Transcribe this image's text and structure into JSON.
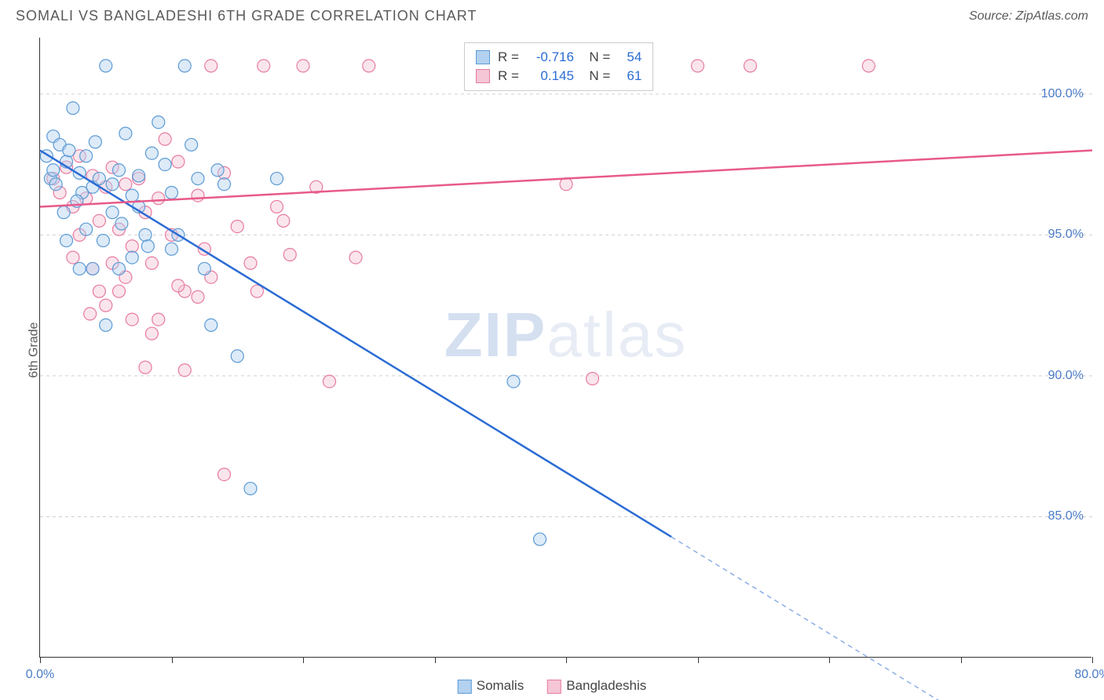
{
  "header": {
    "title": "SOMALI VS BANGLADESHI 6TH GRADE CORRELATION CHART",
    "source": "Source: ZipAtlas.com"
  },
  "ylabel": "6th Grade",
  "watermark_zip": "ZIP",
  "watermark_atlas": "atlas",
  "chart": {
    "type": "scatter",
    "background_color": "#ffffff",
    "grid_color": "#d0d0d0",
    "axis_color": "#333333",
    "label_color": "#4a7bc8",
    "xlim": [
      0,
      80
    ],
    "ylim": [
      80,
      102
    ],
    "xtick_positions": [
      0,
      10,
      20,
      30,
      40,
      50,
      60,
      70,
      80
    ],
    "xtick_labels": {
      "0": "0.0%",
      "80": "80.0%"
    },
    "ytick_positions": [
      85,
      90,
      95,
      100
    ],
    "ytick_labels": {
      "85": "85.0%",
      "90": "90.0%",
      "95": "95.0%",
      "100": "100.0%"
    },
    "marker_radius": 8,
    "marker_opacity": 0.45,
    "line_width": 2.5,
    "series": [
      {
        "name": "Somalis",
        "color_fill": "#b3d1f0",
        "color_stroke": "#5b9bd5",
        "line_color": "#2b6cd4",
        "R": "-0.716",
        "N": "54",
        "trend": {
          "x1": 0,
          "y1": 98,
          "x2": 48,
          "y2": 84,
          "x2_ext": 70,
          "y2_ext": 78,
          "dashed_from": 48
        },
        "points": [
          [
            0.5,
            97.8
          ],
          [
            0.8,
            97.0
          ],
          [
            1.0,
            98.5
          ],
          [
            1.2,
            96.8
          ],
          [
            1.5,
            98.2
          ],
          [
            1.0,
            97.3
          ],
          [
            2.0,
            97.6
          ],
          [
            2.2,
            98.0
          ],
          [
            2.5,
            99.5
          ],
          [
            3.0,
            97.2
          ],
          [
            3.2,
            96.5
          ],
          [
            3.5,
            97.8
          ],
          [
            4.0,
            96.7
          ],
          [
            4.2,
            98.3
          ],
          [
            4.5,
            97.0
          ],
          [
            5.0,
            101.0
          ],
          [
            5.5,
            96.8
          ],
          [
            6.0,
            97.3
          ],
          [
            6.5,
            98.6
          ],
          [
            7.0,
            96.4
          ],
          [
            7.5,
            97.1
          ],
          [
            8.0,
            95.0
          ],
          [
            8.5,
            97.9
          ],
          [
            9.0,
            99.0
          ],
          [
            10.0,
            96.5
          ],
          [
            11.0,
            101.0
          ],
          [
            12.0,
            97.0
          ],
          [
            12.5,
            93.8
          ],
          [
            6.0,
            93.8
          ],
          [
            7.0,
            94.2
          ],
          [
            5.0,
            91.8
          ],
          [
            10.0,
            94.5
          ],
          [
            13.0,
            91.8
          ],
          [
            15.0,
            90.7
          ],
          [
            13.5,
            97.3
          ],
          [
            14.0,
            96.8
          ],
          [
            16.0,
            86.0
          ],
          [
            18.0,
            97.0
          ],
          [
            3.5,
            95.2
          ],
          [
            4.8,
            94.8
          ],
          [
            36.0,
            89.8
          ],
          [
            38.0,
            84.2
          ],
          [
            2.8,
            96.2
          ],
          [
            1.8,
            95.8
          ],
          [
            4.0,
            93.8
          ],
          [
            6.2,
            95.4
          ],
          [
            8.2,
            94.6
          ],
          [
            9.5,
            97.5
          ],
          [
            11.5,
            98.2
          ],
          [
            2.0,
            94.8
          ],
          [
            3.0,
            93.8
          ],
          [
            5.5,
            95.8
          ],
          [
            7.5,
            96.0
          ],
          [
            10.5,
            95.0
          ]
        ]
      },
      {
        "name": "Bangladeshis",
        "color_fill": "#f5c6d6",
        "color_stroke": "#e87ba0",
        "line_color": "#e85a8a",
        "R": "0.145",
        "N": "61",
        "trend": {
          "x1": 0,
          "y1": 96,
          "x2": 80,
          "y2": 98,
          "x2_ext": 80,
          "y2_ext": 98,
          "dashed_from": 80
        },
        "points": [
          [
            1.0,
            97.0
          ],
          [
            1.5,
            96.5
          ],
          [
            2.0,
            97.4
          ],
          [
            2.5,
            96.0
          ],
          [
            3.0,
            97.8
          ],
          [
            3.5,
            96.3
          ],
          [
            4.0,
            97.1
          ],
          [
            4.5,
            95.5
          ],
          [
            5.0,
            96.7
          ],
          [
            5.5,
            97.4
          ],
          [
            6.0,
            95.2
          ],
          [
            6.5,
            96.8
          ],
          [
            7.0,
            94.6
          ],
          [
            7.5,
            97.0
          ],
          [
            8.0,
            95.8
          ],
          [
            8.5,
            94.0
          ],
          [
            9.0,
            96.3
          ],
          [
            9.5,
            98.4
          ],
          [
            10.0,
            95.0
          ],
          [
            10.5,
            97.6
          ],
          [
            11.0,
            93.0
          ],
          [
            12.0,
            96.4
          ],
          [
            12.5,
            94.5
          ],
          [
            13.0,
            101.0
          ],
          [
            14.0,
            97.2
          ],
          [
            15.0,
            95.3
          ],
          [
            16.0,
            94.0
          ],
          [
            17.0,
            101.0
          ],
          [
            18.0,
            96.0
          ],
          [
            19.0,
            94.3
          ],
          [
            20.0,
            101.0
          ],
          [
            21.0,
            96.7
          ],
          [
            24.0,
            94.2
          ],
          [
            25.0,
            101.0
          ],
          [
            7.0,
            92.0
          ],
          [
            8.0,
            90.3
          ],
          [
            6.0,
            93.0
          ],
          [
            9.0,
            92.0
          ],
          [
            11.0,
            90.2
          ],
          [
            14.0,
            86.5
          ],
          [
            22.0,
            89.8
          ],
          [
            4.0,
            93.8
          ],
          [
            5.0,
            92.5
          ],
          [
            36.0,
            101.0
          ],
          [
            40.0,
            96.8
          ],
          [
            42.0,
            89.9
          ],
          [
            50.0,
            101.0
          ],
          [
            54.0,
            101.0
          ],
          [
            63.0,
            101.0
          ],
          [
            3.0,
            95.0
          ],
          [
            6.5,
            93.5
          ],
          [
            2.5,
            94.2
          ],
          [
            4.5,
            93.0
          ],
          [
            8.5,
            91.5
          ],
          [
            10.5,
            93.2
          ],
          [
            13.0,
            93.5
          ],
          [
            16.5,
            93.0
          ],
          [
            18.5,
            95.5
          ],
          [
            5.5,
            94.0
          ],
          [
            12.0,
            92.8
          ],
          [
            3.8,
            92.2
          ]
        ]
      }
    ]
  },
  "legend_bottom": [
    {
      "label": "Somalis",
      "fill": "#b3d1f0",
      "stroke": "#5b9bd5"
    },
    {
      "label": "Bangladeshis",
      "fill": "#f5c6d6",
      "stroke": "#e87ba0"
    }
  ]
}
